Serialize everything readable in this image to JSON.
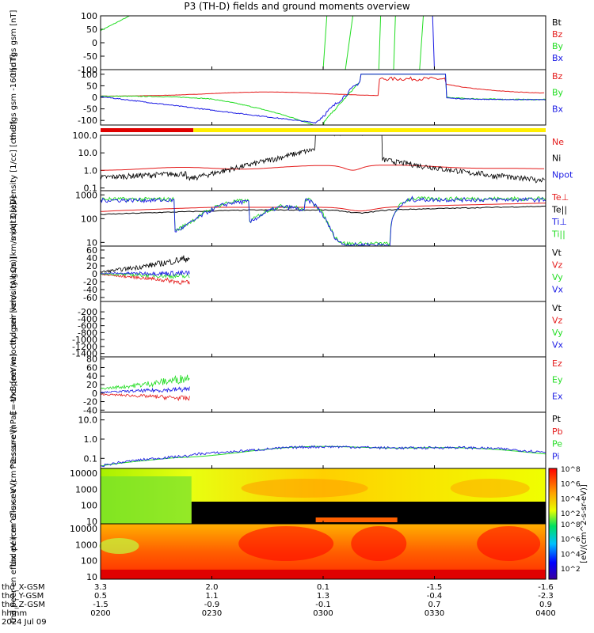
{
  "title": "P3 (TH-D) fields and ground moments overview",
  "colors": {
    "black": "#000000",
    "red": "#e41a1a",
    "green": "#22dd22",
    "blue": "#1a1ae4",
    "yellow": "#ffee00",
    "bar_red": "#e00000"
  },
  "xaxis": {
    "tick_labels": [
      "0200",
      "0230",
      "0300",
      "0330",
      "0400"
    ],
    "rows": [
      {
        "name": "thd_X-GSM",
        "values": [
          "3.3",
          "2.0",
          "0.1",
          "-1.5",
          "-1.6"
        ]
      },
      {
        "name": "thd_Y-GSM",
        "values": [
          "0.5",
          "1.1",
          "1.3",
          "-0.4",
          "-2.3"
        ]
      },
      {
        "name": "thd_Z-GSM",
        "values": [
          "-1.5",
          "-0.9",
          "-0.1",
          "0.7",
          "0.9"
        ]
      },
      {
        "name": "hhmm",
        "values": [
          "0200",
          "0230",
          "0300",
          "0330",
          "0400"
        ]
      }
    ],
    "date": "2024 Jul 09",
    "xlim": [
      0,
      120
    ]
  },
  "colorbar": {
    "label": "[eV/(cm^2-s-sr-eV)]",
    "ticks": [
      "10^2",
      "10^4",
      "10^6",
      "10^8"
    ]
  },
  "chart_data": [
    {
      "type": "line",
      "ylabel": "thd fgs gsm [nT]",
      "ylim": [
        -100,
        100
      ],
      "yticks": [
        -100,
        -50,
        0,
        50,
        100
      ],
      "legend": [
        "Bt",
        "Bz",
        "By",
        "Bx"
      ]
    },
    {
      "type": "line",
      "ylabel": "thd fgs gsm -160 [nT]",
      "ylim": [
        -120,
        120
      ],
      "yticks": [
        -100,
        -50,
        0,
        50,
        100
      ],
      "legend": [
        "Bz",
        "By",
        "Bx"
      ]
    },
    {
      "type": "line",
      "ylabel": "Density [1/cc] [cm-3]",
      "log": true,
      "ylim": [
        0.07,
        100
      ],
      "ytick_labels": [
        "100.0",
        "10.0",
        "1.0",
        "0.1"
      ],
      "legend": [
        "Ne",
        "Ni",
        "Npot"
      ]
    },
    {
      "type": "line",
      "ylabel": "moqt3 [eV]",
      "log": true,
      "ylim": [
        7,
        1500
      ],
      "ytick_labels": [
        "1000",
        "100",
        "10"
      ],
      "legend": [
        "Te⊥",
        "Te||",
        "Ti⊥",
        "Ti||"
      ]
    },
    {
      "type": "line",
      "ylabel": "thd peir velocity gsm [km/s (All Qs)]",
      "ylim": [
        -70,
        70
      ],
      "yticks": [
        60,
        40,
        20,
        0,
        -20,
        -40,
        -60
      ],
      "legend": [
        "Vt",
        "Vz",
        "Vy",
        "Vx"
      ]
    },
    {
      "type": "line",
      "ylabel": "thd peer velocity gsm [km/s (All Qs)]",
      "ylim": [
        -1500,
        100
      ],
      "yticks": [
        -200,
        -400,
        -600,
        -800,
        -1000,
        -1200,
        -1400
      ],
      "legend": [
        "Vt",
        "Vz",
        "Vy",
        "Vx"
      ]
    },
    {
      "type": "line",
      "ylabel": "E=-VxB [mV/m]",
      "ylim": [
        -45,
        85
      ],
      "yticks": [
        80,
        60,
        40,
        20,
        0,
        -20,
        -40
      ],
      "legend": [
        "Ez",
        "Ey",
        "Ex"
      ]
    },
    {
      "type": "line",
      "ylabel": "Pressure [nPa]",
      "log": true,
      "ylim": [
        0.03,
        25
      ],
      "ytick_labels": [
        "10.0",
        "1.0",
        "0.1"
      ],
      "legend": [
        "Pt",
        "Pb",
        "Pe",
        "Pi"
      ]
    },
    {
      "type": "heatmap",
      "ylabel": "thd peir en eflux eV (cm^2-s-sr-eV)",
      "log": true,
      "ylim": [
        7,
        20000
      ],
      "ytick_labels": [
        "10000",
        "1000",
        "100",
        "10"
      ]
    },
    {
      "type": "heatmap",
      "ylabel": "thd peer en eflux eV (cm^2-s-sr-eV)",
      "log": true,
      "ylim": [
        7,
        20000
      ],
      "ytick_labels": [
        "10000",
        "1000",
        "100",
        "10"
      ]
    }
  ]
}
